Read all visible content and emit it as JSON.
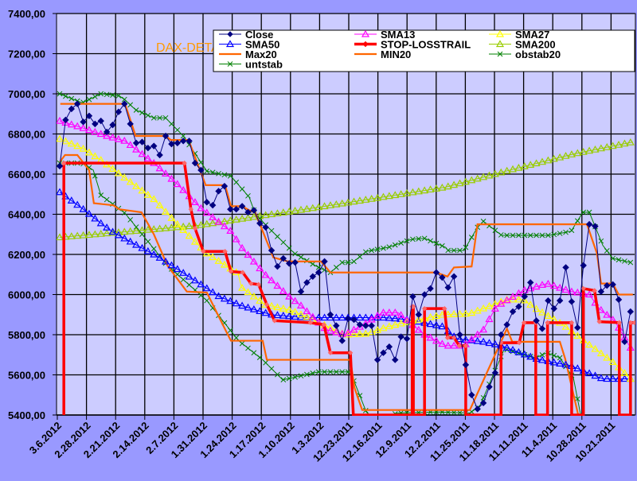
{
  "chart_data": {
    "type": "line",
    "title": "DAX-DETAIL",
    "xlabel": "",
    "ylabel": "",
    "ylim": [
      5400,
      7400
    ],
    "ytick_step": 200,
    "y_ticks": [
      "5400,00",
      "5600,00",
      "5800,00",
      "6000,00",
      "6200,00",
      "6400,00",
      "6600,00",
      "6800,00",
      "7000,00",
      "7200,00",
      "7400,00"
    ],
    "x_tick_labels": [
      "3.6.2012",
      "2.28.2012",
      "2.21.2012",
      "2.14.2012",
      "2.7.2012",
      "1.31.2012",
      "1.24.2012",
      "1.17.2012",
      "1.10.2012",
      "1.3.2012",
      "12.23.2011",
      "12.16.2011",
      "12.9.2011",
      "12.2.2011",
      "11.25.2011",
      "11.18.2011",
      "11.11.2011",
      "11.4.2011",
      "10.28.2011",
      "10.21.2011"
    ],
    "x_order": "descending dates, trading-day index 0 = most recent",
    "grid": true,
    "legend_placement": "top-right",
    "series": [
      {
        "name": "Close",
        "color": "#000080",
        "marker": "diamond",
        "values": [
          6640,
          6870,
          6925,
          6950,
          6860,
          6890,
          6850,
          6865,
          6810,
          6845,
          6910,
          6950,
          6850,
          6755,
          6760,
          6730,
          6740,
          6695,
          6790,
          6750,
          6755,
          6765,
          6765,
          6655,
          6620,
          6460,
          6445,
          6515,
          6540,
          6425,
          6425,
          6440,
          6410,
          6420,
          6355,
          6335,
          6220,
          6140,
          6180,
          6155,
          6160,
          6015,
          6060,
          6090,
          6110,
          6165,
          5900,
          5845,
          5770,
          5880,
          5875,
          5850,
          5845,
          5845,
          5675,
          5710,
          5740,
          5675,
          5790,
          5780,
          5990,
          5900,
          6000,
          6030,
          6110,
          6085,
          6035,
          6090,
          5800,
          5650,
          5500,
          5430,
          5460,
          5540,
          5610,
          5800,
          5850,
          5915,
          5940,
          5990,
          6060,
          5870,
          5830,
          5970,
          5930,
          5970,
          6135,
          5965,
          5835,
          6145,
          6350,
          6340,
          6015,
          6045,
          6050,
          5975,
          5765,
          5915
        ]
      },
      {
        "name": "SMA13",
        "color": "#ff00ff",
        "marker": "triangle",
        "points": [
          [
            0,
            6865
          ],
          [
            3.9,
            6830
          ],
          [
            8,
            6790
          ],
          [
            11.1,
            6765
          ],
          [
            16,
            6655
          ],
          [
            20,
            6550
          ],
          [
            24,
            6430
          ],
          [
            29.1,
            6315
          ],
          [
            30.9,
            6235
          ],
          [
            34.9,
            6100
          ],
          [
            39,
            5990
          ],
          [
            41,
            5945
          ],
          [
            44,
            5860
          ],
          [
            45.3,
            5825
          ],
          [
            48.4,
            5800
          ],
          [
            51.7,
            5850
          ],
          [
            54.8,
            5910
          ],
          [
            57.5,
            5910
          ],
          [
            59.3,
            5865
          ],
          [
            62,
            5800
          ],
          [
            65.6,
            5745
          ],
          [
            68.7,
            5745
          ],
          [
            72,
            5825
          ],
          [
            74.2,
            5940
          ],
          [
            78.8,
            6020
          ],
          [
            82.8,
            6055
          ],
          [
            86.9,
            6015
          ],
          [
            90,
            6000
          ],
          [
            91.7,
            5930
          ],
          [
            94.4,
            5865
          ],
          [
            97,
            5735
          ]
        ]
      },
      {
        "name": "SMA27",
        "color": "#ffff00",
        "marker": "triangle",
        "points": [
          [
            0,
            6775
          ],
          [
            3.8,
            6730
          ],
          [
            7,
            6670
          ],
          [
            11.1,
            6580
          ],
          [
            16,
            6475
          ],
          [
            20,
            6350
          ],
          [
            25,
            6205
          ],
          [
            30.3,
            6105
          ],
          [
            30.9,
            6035
          ],
          [
            34.9,
            5950
          ],
          [
            39.5,
            5920
          ],
          [
            44.9,
            5850
          ],
          [
            48.4,
            5800
          ],
          [
            52.1,
            5805
          ],
          [
            55.8,
            5840
          ],
          [
            59.3,
            5865
          ],
          [
            65.2,
            5900
          ],
          [
            69.7,
            5905
          ],
          [
            76,
            5975
          ],
          [
            78.8,
            5975
          ],
          [
            80.9,
            5930
          ],
          [
            85.5,
            5850
          ],
          [
            90,
            5750
          ],
          [
            94.4,
            5655
          ],
          [
            97,
            5580
          ]
        ]
      },
      {
        "name": "SMA50",
        "color": "#0000ff",
        "marker": "triangle",
        "points": [
          [
            0,
            6510
          ],
          [
            3.8,
            6430
          ],
          [
            7,
            6355
          ],
          [
            9.1,
            6310
          ],
          [
            16.9,
            6185
          ],
          [
            23,
            6070
          ],
          [
            27.1,
            5990
          ],
          [
            30.9,
            5945
          ],
          [
            35.9,
            5900
          ],
          [
            41.7,
            5885
          ],
          [
            48.4,
            5885
          ],
          [
            55.2,
            5885
          ],
          [
            59.3,
            5875
          ],
          [
            65.2,
            5840
          ],
          [
            67.4,
            5780
          ],
          [
            72,
            5765
          ],
          [
            75.1,
            5745
          ],
          [
            80.9,
            5680
          ],
          [
            86.9,
            5645
          ],
          [
            92.3,
            5580
          ],
          [
            97.4,
            5580
          ]
        ]
      },
      {
        "name": "STOP-LOSSTRAIL",
        "color": "#ff0000",
        "marker": "diamond",
        "points": [
          [
            0.7,
            5400
          ],
          [
            0.7,
            6655
          ],
          [
            21.2,
            6655
          ],
          [
            22.3,
            6425
          ],
          [
            23,
            6330
          ],
          [
            24.4,
            6215
          ],
          [
            28.1,
            6215
          ],
          [
            29.1,
            6115
          ],
          [
            31.1,
            6110
          ],
          [
            32.5,
            6055
          ],
          [
            33.8,
            6050
          ],
          [
            35.2,
            5950
          ],
          [
            36.5,
            5870
          ],
          [
            42.6,
            5860
          ],
          [
            44.9,
            5850
          ],
          [
            46,
            5710
          ],
          [
            49.4,
            5710
          ],
          [
            49.9,
            5400
          ],
          [
            59.9,
            5400
          ],
          [
            59.9,
            5940
          ],
          [
            60.1,
            5940
          ],
          [
            60.1,
            5400
          ],
          [
            62,
            5400
          ],
          [
            62,
            5930
          ],
          [
            65.4,
            5930
          ],
          [
            65.9,
            5785
          ],
          [
            67,
            5785
          ],
          [
            67.9,
            5745
          ],
          [
            69,
            5745
          ],
          [
            69,
            5400
          ],
          [
            75,
            5400
          ],
          [
            75,
            5760
          ],
          [
            78.1,
            5760
          ],
          [
            78.9,
            5860
          ],
          [
            80.9,
            5860
          ],
          [
            80.9,
            5400
          ],
          [
            82.9,
            5400
          ],
          [
            82.9,
            5860
          ],
          [
            87,
            5860
          ],
          [
            87,
            5400
          ],
          [
            89,
            5400
          ],
          [
            89,
            6030
          ],
          [
            90.9,
            6020
          ],
          [
            91.7,
            5865
          ],
          [
            95.1,
            5860
          ],
          [
            95.1,
            5400
          ],
          [
            97,
            5400
          ],
          [
            97,
            5860
          ],
          [
            97.7,
            5860
          ]
        ]
      },
      {
        "name": "SMA200",
        "color": "#99cc00",
        "marker": "triangle",
        "points": [
          [
            0,
            6285
          ],
          [
            10.1,
            6310
          ],
          [
            23.7,
            6345
          ],
          [
            30.4,
            6375
          ],
          [
            44,
            6435
          ],
          [
            54.8,
            6485
          ],
          [
            65.6,
            6535
          ],
          [
            76.5,
            6620
          ],
          [
            87.3,
            6700
          ],
          [
            97.4,
            6760
          ]
        ]
      },
      {
        "name": "Max20",
        "color": "#ff6600",
        "marker": "none",
        "points": [
          [
            0.1,
            6950
          ],
          [
            11.1,
            6950
          ],
          [
            12.9,
            6790
          ],
          [
            18,
            6790
          ],
          [
            18.9,
            6770
          ],
          [
            21.9,
            6770
          ],
          [
            24.8,
            6545
          ],
          [
            28.1,
            6545
          ],
          [
            29.1,
            6440
          ],
          [
            31,
            6440
          ],
          [
            32.2,
            6420
          ],
          [
            33.2,
            6410
          ],
          [
            36.3,
            6185
          ],
          [
            38.8,
            6165
          ],
          [
            44.4,
            6165
          ],
          [
            46,
            6110
          ],
          [
            64,
            6110
          ],
          [
            65.9,
            6090
          ],
          [
            67,
            6135
          ],
          [
            70,
            6140
          ],
          [
            71,
            6350
          ],
          [
            89.6,
            6350
          ],
          [
            91.3,
            6205
          ],
          [
            92,
            6055
          ],
          [
            94,
            6055
          ],
          [
            95,
            6000
          ],
          [
            97.4,
            6000
          ]
        ]
      },
      {
        "name": "MIN20",
        "color": "#ff6600",
        "marker": "none",
        "points": [
          [
            0,
            6660
          ],
          [
            0.9,
            6695
          ],
          [
            3,
            6695
          ],
          [
            5,
            6620
          ],
          [
            5.8,
            6455
          ],
          [
            9.1,
            6445
          ],
          [
            10.1,
            6425
          ],
          [
            13.9,
            6410
          ],
          [
            16,
            6300
          ],
          [
            18.3,
            6145
          ],
          [
            21.6,
            6015
          ],
          [
            25,
            6010
          ],
          [
            28.4,
            5810
          ],
          [
            29.1,
            5770
          ],
          [
            34.5,
            5770
          ],
          [
            35.2,
            5675
          ],
          [
            49.4,
            5675
          ],
          [
            50.1,
            5535
          ],
          [
            51.4,
            5425
          ],
          [
            69.7,
            5425
          ],
          [
            76,
            5830
          ],
          [
            76.9,
            5765
          ],
          [
            85,
            5765
          ],
          [
            85.9,
            5680
          ],
          [
            88.2,
            5390
          ]
        ]
      },
      {
        "name": "obstab20",
        "color": "#008000",
        "marker": "x",
        "points": [
          [
            0,
            7000
          ],
          [
            3.8,
            6955
          ],
          [
            7,
            7000
          ],
          [
            10.1,
            6990
          ],
          [
            11.1,
            6970
          ],
          [
            12.9,
            6920
          ],
          [
            16,
            6880
          ],
          [
            18,
            6880
          ],
          [
            21,
            6790
          ],
          [
            25,
            6615
          ],
          [
            29.1,
            6590
          ],
          [
            32.2,
            6485
          ],
          [
            33.2,
            6405
          ],
          [
            34.9,
            6350
          ],
          [
            39.9,
            6205
          ],
          [
            44,
            6135
          ],
          [
            46,
            6110
          ],
          [
            48,
            6160
          ],
          [
            49.8,
            6160
          ],
          [
            52.1,
            6215
          ],
          [
            55.8,
            6235
          ],
          [
            59.8,
            6275
          ],
          [
            62,
            6280
          ],
          [
            65.6,
            6235
          ],
          [
            66,
            6220
          ],
          [
            68.7,
            6220
          ],
          [
            71,
            6335
          ],
          [
            72,
            6365
          ],
          [
            75.1,
            6295
          ],
          [
            83.2,
            6295
          ],
          [
            86.9,
            6315
          ],
          [
            88.9,
            6410
          ],
          [
            90,
            6410
          ],
          [
            92.3,
            6245
          ],
          [
            94,
            6180
          ],
          [
            97,
            6160
          ]
        ]
      },
      {
        "name": "untstab",
        "color": "#008000",
        "marker": "x",
        "points": [
          [
            0,
            6655
          ],
          [
            3.8,
            6655
          ],
          [
            5.7,
            6620
          ],
          [
            7,
            6495
          ],
          [
            11.1,
            6405
          ],
          [
            18.3,
            6145
          ],
          [
            25,
            5970
          ],
          [
            30.4,
            5770
          ],
          [
            34.5,
            5675
          ],
          [
            37.9,
            5575
          ],
          [
            44,
            5615
          ],
          [
            49.4,
            5615
          ],
          [
            52.1,
            5415
          ],
          [
            53.5,
            5380
          ],
          [
            57.5,
            5410
          ],
          [
            64.3,
            5415
          ],
          [
            69.7,
            5410
          ],
          [
            71.4,
            5445
          ],
          [
            75.5,
            5725
          ],
          [
            76,
            5725
          ],
          [
            80.9,
            5685
          ],
          [
            82.8,
            5710
          ],
          [
            85,
            5685
          ],
          [
            87.3,
            5585
          ],
          [
            88.6,
            5390
          ]
        ]
      }
    ]
  }
}
